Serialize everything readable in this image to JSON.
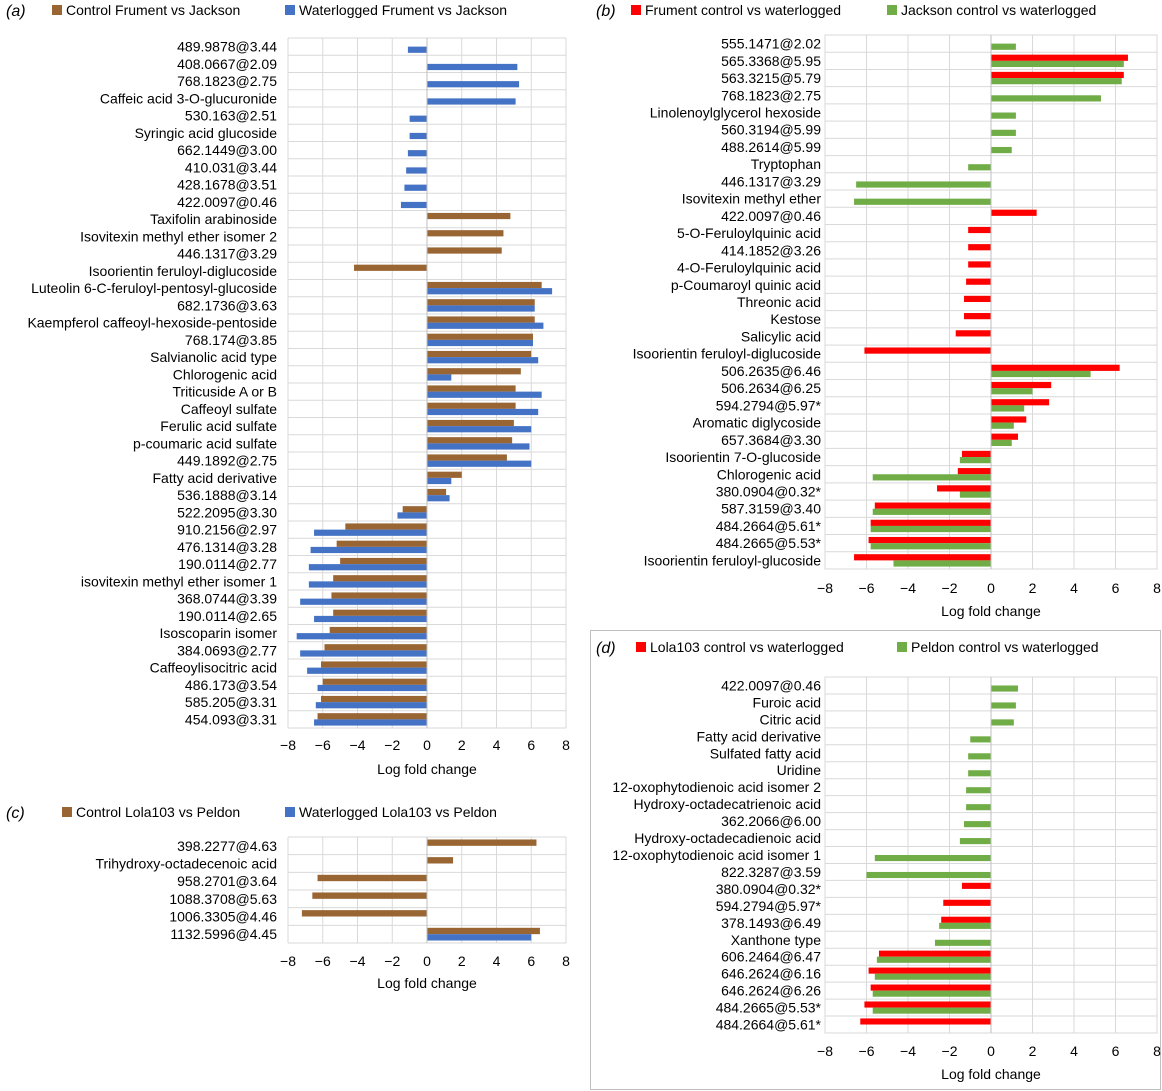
{
  "colors": {
    "brown": "#996633",
    "blue": "#4472C4",
    "red": "#FF0000",
    "green": "#70AD47",
    "grid": "#D9D9D9",
    "axis": "#BFBFBF",
    "text": "#000000"
  },
  "chart_data": [
    {
      "panel_label": "(a)",
      "type": "bar",
      "orientation": "horizontal",
      "xlabel": "Log fold change",
      "xlim": [
        -8,
        8
      ],
      "xticks": [
        -8,
        -6,
        -4,
        -2,
        0,
        2,
        4,
        6,
        8
      ],
      "grid": true,
      "legend": "top",
      "series": [
        {
          "name": "Control Frument vs Jackson",
          "color": "brown",
          "values": [
            0,
            0,
            0,
            0,
            0,
            0,
            0,
            0,
            0,
            0,
            4.8,
            4.4,
            4.3,
            -4.2,
            6.6,
            6.2,
            6.2,
            6.1,
            6.0,
            5.4,
            5.1,
            5.1,
            5.0,
            4.9,
            4.6,
            2.0,
            1.1,
            -1.4,
            -4.7,
            -5.2,
            -5.0,
            -5.4,
            -5.5,
            -5.4,
            -5.6,
            -5.9,
            -6.1,
            -6.0,
            -6.1,
            -6.3
          ],
          "hatched": []
        },
        {
          "name": "Waterlogged Frument vs Jackson",
          "color": "blue",
          "values": [
            -1.1,
            5.2,
            5.3,
            5.1,
            -1.0,
            -1.0,
            -1.1,
            -1.2,
            -1.3,
            -1.5,
            0,
            0,
            0,
            0,
            7.2,
            6.2,
            6.7,
            6.1,
            6.4,
            1.4,
            6.6,
            6.4,
            6.0,
            5.9,
            6.0,
            1.4,
            1.3,
            -1.7,
            -6.5,
            -6.7,
            -6.8,
            -6.8,
            -7.3,
            -6.5,
            -7.5,
            -7.3,
            -6.9,
            -6.3,
            -6.4,
            -6.5
          ],
          "hatched": []
        }
      ],
      "categories": [
        "489.9878@3.44",
        "408.0667@2.09",
        "768.1823@2.75",
        "Caffeic acid 3-O-glucuronide",
        "530.163@2.51",
        "Syringic acid glucoside",
        "662.1449@3.00",
        "410.031@3.44",
        "428.1678@3.51",
        "422.0097@0.46",
        "Taxifolin arabinoside",
        "Isovitexin methyl ether isomer 2",
        "446.1317@3.29",
        "Isoorientin feruloyl-diglucoside",
        "Luteolin 6-C-feruloyl-pentosyl-glucoside",
        "682.1736@3.63",
        "Kaempferol caffeoyl-hexoside-pentoside",
        "768.174@3.85",
        "Salvianolic acid type",
        "Chlorogenic acid",
        "Triticuside A or B",
        "Caffeoyl sulfate",
        "Ferulic acid sulfate",
        "p-coumaric acid sulfate",
        "449.1892@2.75",
        "Fatty acid derivative",
        "536.1888@3.14",
        "522.2095@3.30",
        "910.2156@2.97",
        "476.1314@3.28",
        "190.0114@2.77",
        "isovitexin methyl ether isomer 1",
        "368.0744@3.39",
        "190.0114@2.65",
        "Isoscoparin isomer",
        "384.0693@2.77",
        "Caffeoylisocitric acid",
        "486.173@3.54",
        "585.205@3.31",
        "454.093@3.31"
      ]
    },
    {
      "panel_label": "(b)",
      "type": "bar",
      "orientation": "horizontal",
      "xlabel": "Log fold change",
      "xlim": [
        -8,
        8
      ],
      "xticks": [
        -8,
        -6,
        -4,
        -2,
        0,
        2,
        4,
        6,
        8
      ],
      "grid": true,
      "legend": "top",
      "series": [
        {
          "name": "Frument control vs waterlogged",
          "color": "red",
          "values": [
            0,
            6.6,
            6.4,
            0,
            0,
            0,
            0,
            0,
            0,
            0,
            2.2,
            -1.1,
            -1.1,
            -1.1,
            -1.2,
            -1.3,
            -1.3,
            -1.7,
            -6.1,
            6.2,
            2.9,
            2.8,
            1.7,
            1.3,
            -1.4,
            -1.6,
            -2.6,
            -5.6,
            -5.8,
            -5.9,
            -6.6
          ],
          "hatched": []
        },
        {
          "name": "Jackson control vs waterlogged",
          "color": "green",
          "values": [
            1.2,
            6.4,
            6.3,
            5.3,
            1.2,
            1.2,
            1.0,
            -1.1,
            -6.5,
            -6.6,
            0,
            0,
            0,
            0,
            0,
            0,
            0,
            0,
            0,
            4.8,
            2.0,
            1.6,
            1.1,
            1.0,
            -1.5,
            -5.7,
            -1.5,
            -5.7,
            -5.8,
            -5.8,
            -4.7
          ],
          "hatched": []
        }
      ],
      "categories": [
        "555.1471@2.02",
        "565.3368@5.95",
        "563.3215@5.79",
        "768.1823@2.75",
        "Linolenoylglycerol hexoside",
        "560.3194@5.99",
        "488.2614@5.99",
        "Tryptophan",
        "446.1317@3.29",
        "Isovitexin methyl ether",
        "422.0097@0.46",
        "5-O-Feruloylquinic acid",
        "414.1852@3.26",
        "4-O-Feruloylquinic acid",
        "p-Coumaroyl quinic acid",
        "Threonic acid",
        "Kestose",
        "Salicylic acid",
        "Isoorientin feruloyl-diglucoside",
        "506.2635@6.46",
        "506.2634@6.25",
        "594.2794@5.97*",
        "Aromatic diglycoside",
        "657.3684@3.30",
        "Isoorientin 7-O-glucoside",
        "Chlorogenic acid",
        "380.0904@0.32*",
        "587.3159@3.40",
        "484.2664@5.61*",
        "484.2665@5.53*",
        "Isoorientin feruloyl-glucoside"
      ]
    },
    {
      "panel_label": "(c)",
      "type": "bar",
      "orientation": "horizontal",
      "xlabel": "Log fold change",
      "xlim": [
        -8,
        8
      ],
      "xticks": [
        -8,
        -6,
        -4,
        -2,
        0,
        2,
        4,
        6,
        8
      ],
      "grid": true,
      "legend": "top",
      "series": [
        {
          "name": "Control Lola103 vs Peldon",
          "color": "brown",
          "values": [
            6.3,
            1.5,
            -6.3,
            -6.6,
            -7.2,
            6.5
          ],
          "hatched": []
        },
        {
          "name": "Waterlogged Lola103 vs Peldon",
          "color": "blue",
          "values": [
            0,
            0,
            0,
            0,
            0,
            6.0
          ],
          "hatched": []
        }
      ],
      "categories": [
        "398.2277@4.63",
        "Trihydroxy-octadecenoic acid",
        "958.2701@3.64",
        "1088.3708@5.63",
        "1006.3305@4.46",
        "1132.5996@4.45"
      ]
    },
    {
      "panel_label": "(d)",
      "type": "bar",
      "orientation": "horizontal",
      "xlabel": "Log fold change",
      "xlim": [
        -8,
        8
      ],
      "xticks": [
        -8,
        -6,
        -4,
        -2,
        0,
        2,
        4,
        6,
        8
      ],
      "grid": true,
      "legend": "top",
      "series": [
        {
          "name": "Lola103 control vs waterlogged",
          "color": "red",
          "values": [
            0,
            0,
            0,
            0,
            0,
            0,
            0,
            0,
            0,
            0,
            0,
            0,
            -1.4,
            -2.3,
            -2.4,
            0,
            -5.4,
            -5.9,
            -5.8,
            -6.1,
            -6.3
          ],
          "hatched": []
        },
        {
          "name": "Peldon control vs waterlogged",
          "color": "green",
          "values": [
            1.3,
            1.2,
            1.1,
            -1.0,
            -1.1,
            -1.1,
            -1.2,
            -1.2,
            -1.3,
            -1.5,
            -5.6,
            -6.0,
            0,
            0,
            -2.5,
            -2.7,
            -5.5,
            -5.6,
            -5.7,
            -5.7,
            0
          ],
          "hatched": []
        }
      ],
      "categories": [
        "422.0097@0.46",
        "Furoic acid",
        "Citric acid",
        "Fatty acid derivative",
        "Sulfated fatty acid",
        "Uridine",
        "12-oxophytodienoic acid isomer 2",
        "Hydroxy-octadecatrienoic acid",
        "362.2066@6.00",
        "Hydroxy-octadecadienoic acid",
        "12-oxophytodienoic acid isomer 1",
        "822.3287@3.59",
        "380.0904@0.32*",
        "594.2794@5.97*",
        "378.1493@6.49",
        "Xanthone type",
        "606.2464@6.47",
        "646.2624@6.16",
        "646.2624@6.26",
        "484.2665@5.53*",
        "484.2664@5.61*"
      ]
    }
  ]
}
